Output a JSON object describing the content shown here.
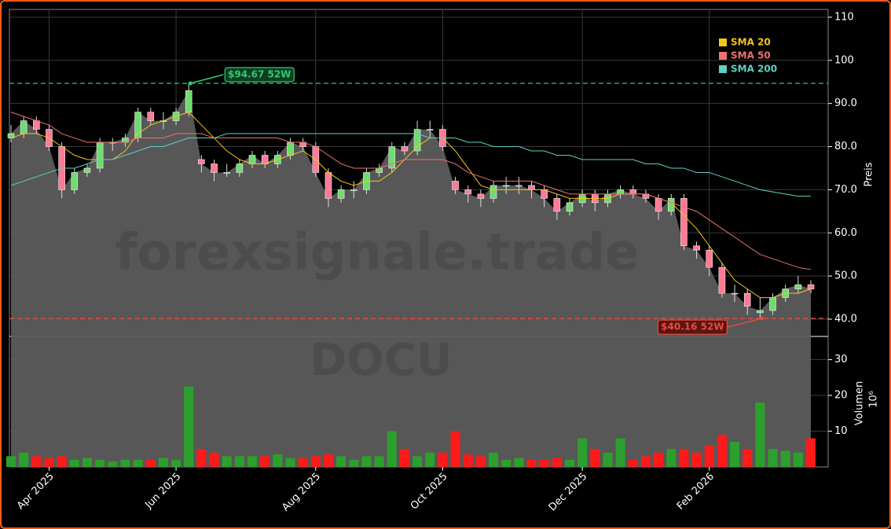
{
  "chart_data": {
    "type": "candlestick",
    "watermark": "forexsignale.trade",
    "ticker": "DOCU",
    "categories": [
      null,
      null,
      null,
      "Apr 2025",
      null,
      null,
      null,
      null,
      null,
      null,
      null,
      null,
      null,
      "Jun 2025",
      null,
      null,
      null,
      null,
      null,
      null,
      null,
      null,
      null,
      null,
      "Aug 2025",
      null,
      null,
      null,
      null,
      null,
      null,
      null,
      null,
      null,
      "Oct 2025",
      null,
      null,
      null,
      null,
      null,
      null,
      null,
      null,
      null,
      null,
      "Dec 2025",
      null,
      null,
      null,
      null,
      null,
      null,
      null,
      null,
      null,
      "Feb 2026",
      null,
      null,
      null,
      null,
      null,
      null,
      null,
      null
    ],
    "open": [
      82,
      83,
      86,
      84,
      80,
      70,
      74,
      75,
      81,
      81,
      82,
      88,
      86,
      86,
      88,
      77,
      76,
      74,
      74,
      76,
      78,
      76,
      78,
      81,
      80,
      74,
      68,
      70,
      70,
      74,
      75,
      80,
      79,
      84,
      84,
      72,
      70,
      69,
      68,
      71,
      71,
      71,
      70,
      68,
      65,
      67,
      69,
      67,
      69,
      70,
      69,
      68,
      65,
      68,
      57,
      56,
      52,
      46,
      46,
      41.5,
      42,
      45,
      47,
      48
    ],
    "high": [
      85,
      87,
      87,
      85,
      81,
      75,
      76,
      82,
      82,
      83,
      89,
      89,
      88,
      89,
      94.67,
      78,
      77,
      76,
      77,
      79,
      79,
      79,
      82,
      82,
      81,
      75,
      71,
      72,
      75,
      76,
      81,
      81,
      86,
      86,
      85,
      73,
      71,
      70,
      72,
      73,
      73,
      72,
      71,
      69,
      68,
      70,
      70,
      70,
      71,
      71,
      70,
      69,
      69,
      69,
      58,
      57,
      53,
      48,
      47,
      45,
      46,
      48,
      50,
      49
    ],
    "low": [
      81,
      82,
      83,
      79,
      68,
      69,
      73,
      74,
      79,
      80,
      81,
      85,
      84,
      85,
      87,
      74,
      72,
      73,
      73,
      75,
      75,
      75,
      77,
      79,
      73,
      66,
      67,
      68,
      69,
      73,
      74,
      78,
      78,
      82,
      79,
      69,
      67,
      66,
      67,
      69,
      69,
      68,
      66,
      63,
      64,
      66,
      65,
      66,
      68,
      68,
      67,
      63,
      64,
      56,
      54,
      50,
      45,
      44,
      41,
      40.16,
      41,
      44,
      46,
      46
    ],
    "close": [
      83,
      86,
      84,
      80,
      70,
      74,
      75,
      81,
      81,
      82,
      88,
      86,
      86,
      88,
      93,
      76,
      74,
      74,
      76,
      78,
      76,
      78,
      81,
      80,
      74,
      68,
      70,
      70,
      74,
      75,
      80,
      79,
      84,
      84,
      80,
      70,
      69,
      68,
      71,
      71,
      71,
      70,
      68,
      65,
      67,
      69,
      67,
      69,
      70,
      69,
      68,
      65,
      68,
      57,
      56,
      52,
      46,
      46,
      43,
      42,
      45,
      47,
      48,
      47
    ],
    "up_color": "#2ca02c",
    "down_color": "#ff1a1a",
    "area_color": "#5c5c5c",
    "ylim": [
      36,
      111.8
    ],
    "yticks": [
      {
        "value": 40,
        "label": "40.0"
      },
      {
        "value": 50,
        "label": "50.0"
      },
      {
        "value": 60,
        "label": "60.0"
      },
      {
        "value": 70,
        "label": "70.0"
      },
      {
        "value": 80,
        "label": "80.0"
      },
      {
        "value": 90,
        "label": "90.0"
      },
      100,
      110
    ],
    "ylabel": "Preis",
    "grid": true,
    "legend": "upper right",
    "series": [
      {
        "name": "SMA 20",
        "color": "#f5c518",
        "values": [
          82,
          83,
          83,
          82,
          80,
          78,
          77,
          77,
          77,
          79,
          83,
          85,
          86,
          87,
          88,
          85,
          82,
          79,
          77,
          76,
          76,
          77,
          78,
          79,
          77,
          74,
          72,
          71,
          72,
          72,
          74,
          77,
          80,
          82,
          82,
          79,
          75,
          71,
          70,
          70,
          70,
          70,
          70,
          69,
          68,
          68,
          68,
          68,
          69,
          69,
          69,
          68,
          67,
          64,
          61,
          57,
          53,
          49,
          47,
          45,
          45,
          46,
          46,
          47
        ]
      },
      {
        "name": "SMA 50",
        "color": "#f07070",
        "values": [
          88,
          87,
          86,
          85,
          83,
          82,
          81,
          81,
          81,
          81,
          82,
          82,
          82,
          83,
          83,
          83,
          82,
          82,
          82,
          82,
          82,
          82,
          81,
          81,
          80,
          78,
          76,
          75,
          75,
          75,
          76,
          77,
          77,
          77,
          77,
          76,
          74,
          73,
          72,
          72,
          72,
          72,
          71,
          70,
          69,
          69,
          69,
          69,
          69,
          69,
          69,
          68,
          67,
          66,
          65,
          63,
          61,
          59,
          57,
          55,
          54,
          53,
          52,
          51.5
        ]
      },
      {
        "name": "SMA 200",
        "color": "#5fcfc7",
        "values": [
          71,
          72,
          73,
          74,
          75,
          75,
          76,
          77,
          77,
          78,
          79,
          80,
          80,
          81,
          82,
          82,
          82,
          83,
          83,
          83,
          83,
          83,
          83,
          83,
          83,
          83,
          83,
          83,
          83,
          83,
          83,
          83,
          83,
          82,
          82,
          82,
          81,
          81,
          80,
          80,
          80,
          79,
          79,
          78,
          78,
          77,
          77,
          77,
          77,
          77,
          76,
          76,
          75,
          75,
          74,
          74,
          73,
          72,
          71,
          70,
          69.5,
          69,
          68.5,
          68.5
        ]
      }
    ],
    "hlines": [
      {
        "value": 94.67,
        "label": "$94.67 52W",
        "color": "#2ecc71"
      },
      {
        "value": 40.16,
        "label": "$40.16 52W",
        "color": "#e74c3c"
      }
    ],
    "volume": {
      "values": [
        3,
        4,
        3,
        2.5,
        3,
        2,
        2.5,
        2,
        1.5,
        2,
        2,
        2,
        2.5,
        2,
        22.5,
        5,
        4,
        3,
        3,
        3,
        3,
        3.5,
        2.5,
        2.5,
        3,
        3.5,
        3,
        2,
        3,
        3,
        10,
        5,
        3,
        4,
        4,
        10,
        3.5,
        3,
        4,
        2,
        2.5,
        2,
        2,
        2.5,
        2,
        8,
        5,
        4,
        8,
        2,
        3,
        4,
        5,
        5,
        4,
        6,
        9,
        7,
        5,
        18,
        5,
        4.5,
        4,
        8
      ],
      "ylim": [
        0,
        36.5
      ],
      "yticks": [
        10,
        20,
        30
      ],
      "ylabel": "Volumen",
      "unit": "10⁶"
    }
  }
}
